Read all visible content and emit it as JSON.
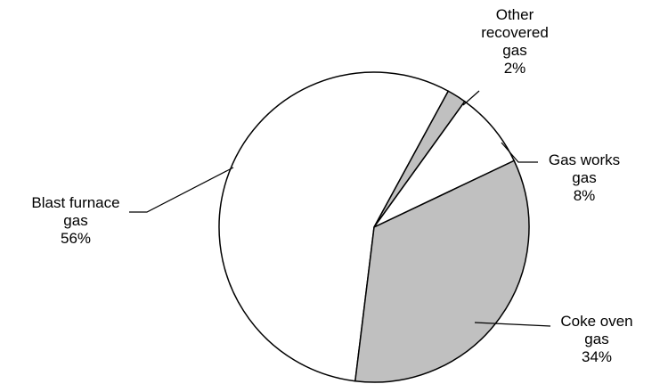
{
  "chart_data": {
    "type": "pie",
    "title": "",
    "slices": [
      {
        "name": [
          "Blast furnace",
          "gas"
        ],
        "value": 56,
        "label": "56%",
        "color": "#ffffff"
      },
      {
        "name": [
          "Other",
          "recovered",
          "gas"
        ],
        "value": 2,
        "label": "2%",
        "color": "#c0c0c0"
      },
      {
        "name": [
          "Gas works",
          "gas"
        ],
        "value": 8,
        "label": "8%",
        "color": "#ffffff"
      },
      {
        "name": [
          "Coke oven",
          "gas"
        ],
        "value": 34,
        "label": "34%",
        "color": "#c0c0c0"
      }
    ],
    "legend": "none",
    "labels": "outside-with-leader-lines",
    "border_color": "#000000"
  }
}
